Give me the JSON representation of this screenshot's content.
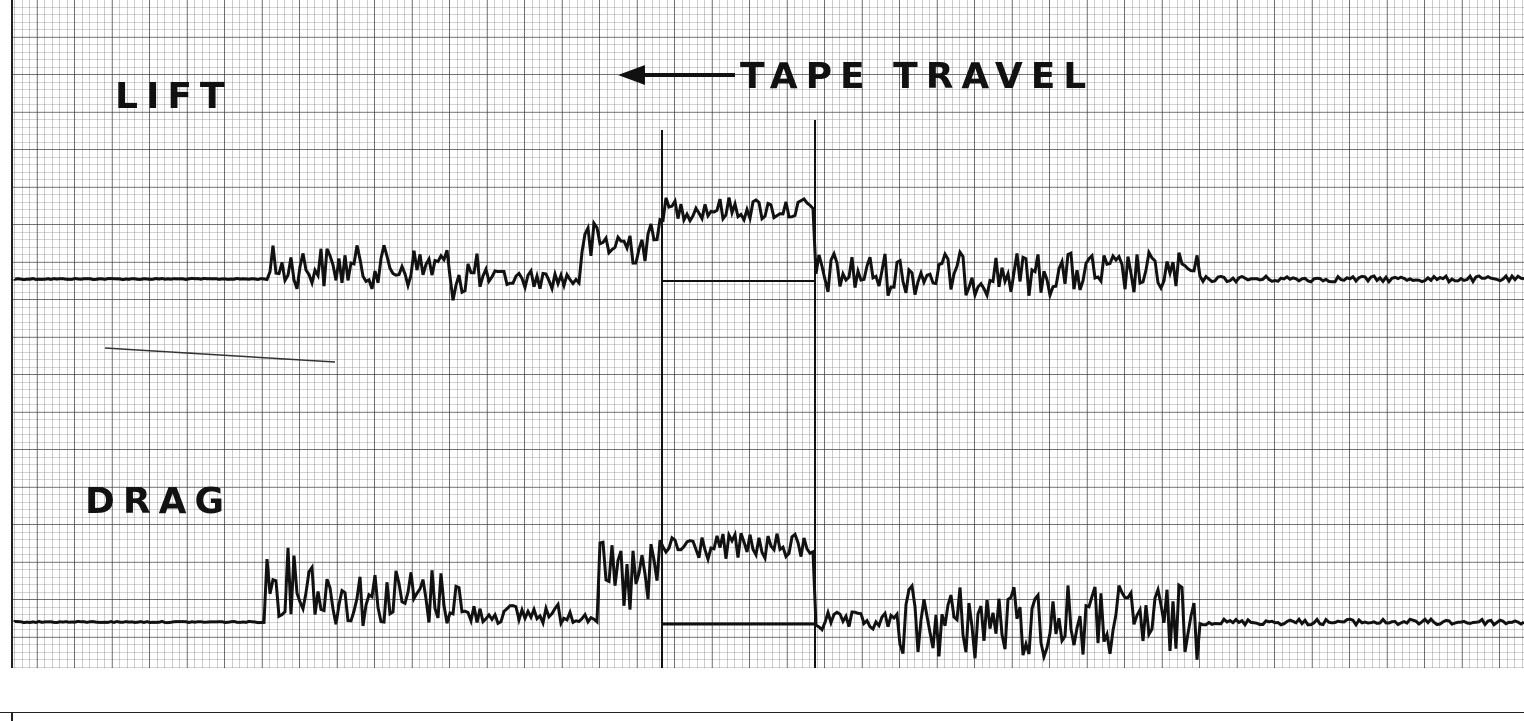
{
  "labels": {
    "lift": "LIFT",
    "tape_travel": "TAPE TRAVEL",
    "drag": "DRAG"
  }
}
